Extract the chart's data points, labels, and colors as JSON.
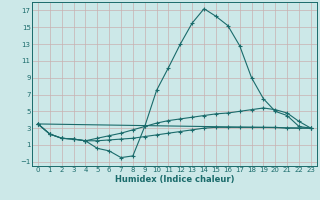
{
  "xlabel": "Humidex (Indice chaleur)",
  "bg_color": "#cce8e8",
  "grid_color": "#c8b0b0",
  "line_color": "#1a6b6b",
  "xlim": [
    -0.5,
    23.5
  ],
  "ylim": [
    -1.5,
    18
  ],
  "yticks": [
    -1,
    1,
    3,
    5,
    7,
    9,
    11,
    13,
    15,
    17
  ],
  "xticks": [
    0,
    1,
    2,
    3,
    4,
    5,
    6,
    7,
    8,
    9,
    10,
    11,
    12,
    13,
    14,
    15,
    16,
    17,
    18,
    19,
    20,
    21,
    22,
    23
  ],
  "line1_x": [
    0,
    1,
    2,
    3,
    4,
    5,
    6,
    7,
    8,
    9,
    10,
    11,
    12,
    13,
    14,
    15,
    16,
    17,
    18,
    19,
    20,
    21,
    22,
    23
  ],
  "line1_y": [
    3.5,
    2.3,
    1.8,
    1.7,
    1.5,
    0.6,
    0.3,
    -0.5,
    -0.3,
    3.2,
    7.5,
    10.2,
    13.0,
    15.5,
    17.2,
    16.3,
    15.2,
    12.8,
    9.0,
    6.5,
    5.0,
    4.5,
    3.2,
    3.0
  ],
  "line2_x": [
    0,
    1,
    2,
    3,
    4,
    5,
    6,
    7,
    8,
    9,
    10,
    11,
    12,
    13,
    14,
    15,
    16,
    17,
    18,
    19,
    20,
    21,
    22,
    23
  ],
  "line2_y": [
    3.5,
    2.3,
    1.8,
    1.7,
    1.5,
    1.8,
    2.1,
    2.4,
    2.8,
    3.2,
    3.6,
    3.9,
    4.1,
    4.3,
    4.5,
    4.7,
    4.8,
    5.0,
    5.2,
    5.4,
    5.2,
    4.8,
    3.8,
    3.0
  ],
  "line3_x": [
    0,
    1,
    2,
    3,
    4,
    5,
    6,
    7,
    8,
    9,
    10,
    11,
    12,
    13,
    14,
    15,
    16,
    17,
    18,
    19,
    20,
    21,
    22,
    23
  ],
  "line3_y": [
    3.5,
    2.3,
    1.8,
    1.7,
    1.5,
    1.5,
    1.6,
    1.7,
    1.8,
    2.0,
    2.2,
    2.4,
    2.6,
    2.8,
    3.0,
    3.1,
    3.1,
    3.1,
    3.1,
    3.1,
    3.1,
    3.0,
    3.0,
    3.0
  ],
  "line4_x": [
    0,
    23
  ],
  "line4_y": [
    3.5,
    3.0
  ]
}
